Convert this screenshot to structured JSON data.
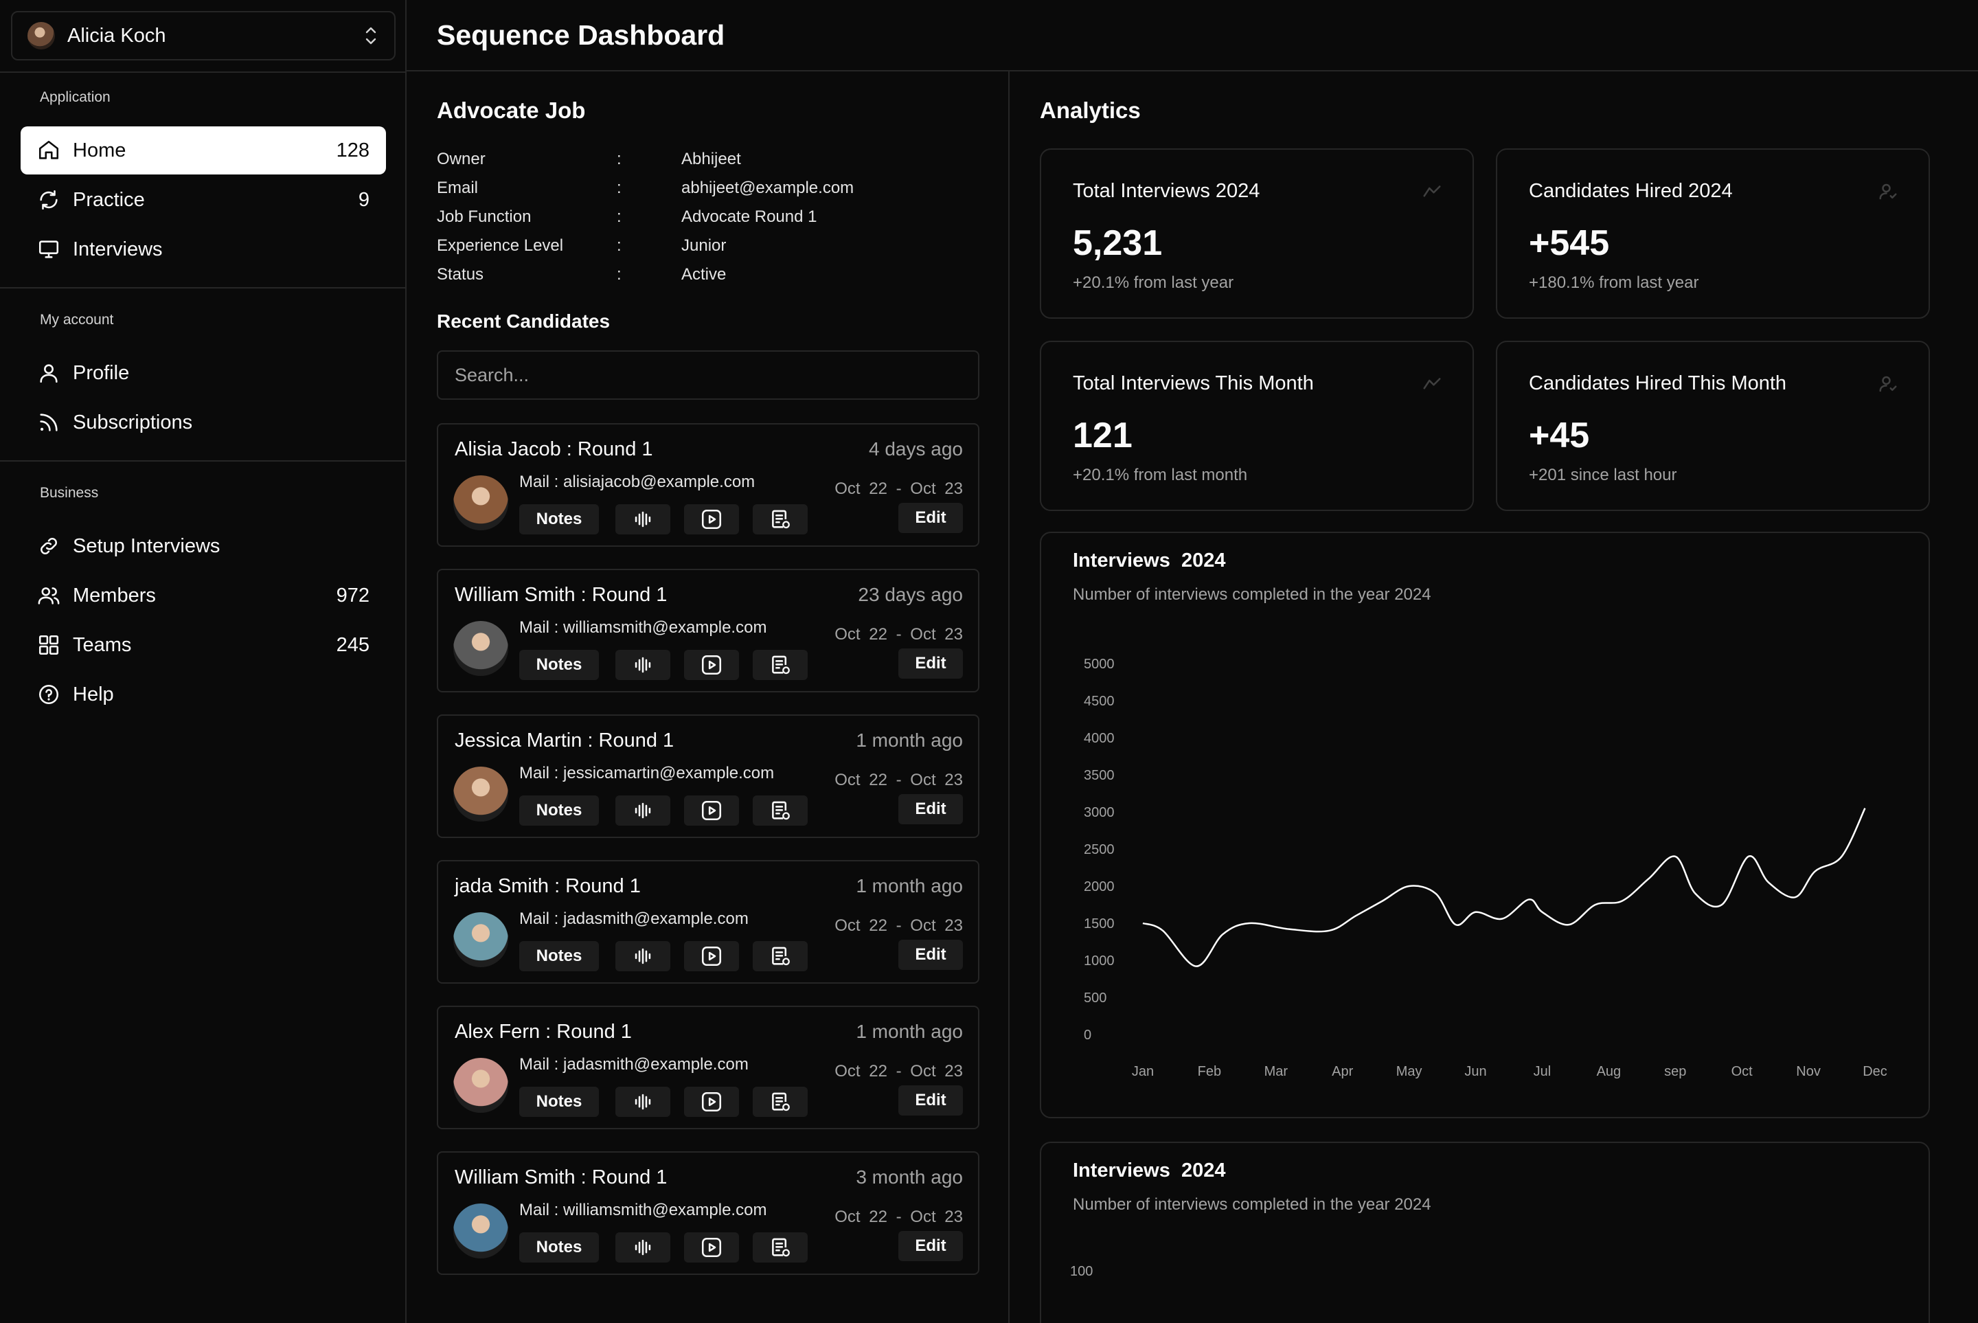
{
  "account": {
    "name": "Alicia Koch"
  },
  "sidebar": {
    "groups": [
      {
        "label": "Application",
        "items": [
          {
            "label": "Home",
            "count": "128",
            "icon": "home-icon",
            "active": true
          },
          {
            "label": "Practice",
            "count": "9",
            "icon": "refresh-icon"
          },
          {
            "label": "Interviews",
            "count": "",
            "icon": "monitor-icon"
          }
        ]
      },
      {
        "label": "My account",
        "items": [
          {
            "label": "Profile",
            "count": "",
            "icon": "user-icon"
          },
          {
            "label": "Subscriptions",
            "count": "",
            "icon": "rss-icon"
          }
        ]
      },
      {
        "label": "Business",
        "items": [
          {
            "label": "Setup Interviews",
            "count": "",
            "icon": "link-icon"
          },
          {
            "label": "Members",
            "count": "972",
            "icon": "users-icon"
          },
          {
            "label": "Teams",
            "count": "245",
            "icon": "grid-icon"
          },
          {
            "label": "Help",
            "count": "",
            "icon": "help-icon"
          }
        ]
      }
    ]
  },
  "header": {
    "title": "Sequence Dashboard"
  },
  "job": {
    "title": "Advocate Job",
    "fields": [
      {
        "label": "Owner",
        "sep": ":",
        "value": "Abhijeet"
      },
      {
        "label": "Email",
        "sep": ":",
        "value": "abhijeet@example.com"
      },
      {
        "label": "Job Function",
        "sep": ":",
        "value": "Advocate Round 1"
      },
      {
        "label": "Experience Level",
        "sep": ":",
        "value": "Junior"
      },
      {
        "label": "Status",
        "sep": ":",
        "value": "Active"
      }
    ]
  },
  "candidates": {
    "title": "Recent Candidates",
    "search_placeholder": "Search...",
    "notes_label": "Notes",
    "edit_label": "Edit",
    "items": [
      {
        "name": "Alisia Jacob  : Round 1",
        "ago": "4 days ago",
        "mail": "Mail : alisiajacob@example.com",
        "dates": "Oct 22 - Oct 23",
        "avatar_color": "#8a5a3a"
      },
      {
        "name": "William Smith : Round 1",
        "ago": "23 days ago",
        "mail": "Mail : williamsmith@example.com",
        "dates": "Oct 22 - Oct 23",
        "avatar_color": "#5a5a5a"
      },
      {
        "name": "Jessica Martin : Round 1",
        "ago": "1 month ago",
        "mail": "Mail : jessicamartin@example.com",
        "dates": "Oct 22 - Oct 23",
        "avatar_color": "#9a6b4d"
      },
      {
        "name": "jada Smith : Round 1",
        "ago": "1 month ago",
        "mail": "Mail : jadasmith@example.com",
        "dates": "Oct 22 - Oct 23",
        "avatar_color": "#6b9aa8"
      },
      {
        "name": "Alex Fern : Round 1",
        "ago": "1 month ago",
        "mail": "Mail : jadasmith@example.com",
        "dates": "Oct 22 - Oct 23",
        "avatar_color": "#c9928a"
      },
      {
        "name": "William Smith : Round 1",
        "ago": "3 month ago",
        "mail": "Mail : williamsmith@example.com",
        "dates": "Oct 22 - Oct 23",
        "avatar_color": "#4a7a9a"
      }
    ]
  },
  "analytics": {
    "title": "Analytics",
    "stats": [
      {
        "title": "Total Interviews 2024",
        "value": "5,231",
        "sub": "+20.1% from last year",
        "icon": "trend-icon"
      },
      {
        "title": "Candidates Hired 2024",
        "value": "+545",
        "sub": "+180.1% from last year",
        "icon": "user-check-icon"
      },
      {
        "title": "Total Interviews This Month",
        "value": "121",
        "sub": "+20.1% from last month",
        "icon": "trend-icon"
      },
      {
        "title": "Candidates Hired This Month",
        "value": "+45",
        "sub": "+201 since last hour",
        "icon": "user-check-icon"
      }
    ],
    "charts": [
      {
        "title": "Interviews  2024",
        "subtitle": "Number of interviews completed in the year 2024"
      },
      {
        "title": "Interviews  2024",
        "subtitle": "Number of interviews completed in the year 2024",
        "first_tick": "100"
      }
    ]
  },
  "chart_data": {
    "type": "line",
    "categories": [
      "Jan",
      "Feb",
      "Mar",
      "Apr",
      "May",
      "Jun",
      "Jul",
      "Aug",
      "sep",
      "Oct",
      "Nov",
      "Dec"
    ],
    "yticks": [
      5000,
      4500,
      4000,
      3500,
      3000,
      2500,
      2000,
      1500,
      1000,
      500,
      0
    ],
    "ylim": [
      0,
      5000
    ],
    "grid": false,
    "x": [
      0,
      0.3,
      0.8,
      1.2,
      1.6,
      2.2,
      2.8,
      3.2,
      3.6,
      4.0,
      4.4,
      4.7,
      5.0,
      5.4,
      5.8,
      6.0,
      6.4,
      6.8,
      7.2,
      7.6,
      8.0,
      8.3,
      8.7,
      9.1,
      9.4,
      9.8,
      10.1,
      10.5,
      10.85
    ],
    "y": [
      1500,
      1400,
      920,
      1350,
      1500,
      1420,
      1400,
      1600,
      1800,
      2000,
      1900,
      1480,
      1650,
      1560,
      1820,
      1650,
      1480,
      1750,
      1800,
      2100,
      2400,
      1900,
      1750,
      2400,
      2050,
      1850,
      2200,
      2400,
      3050
    ],
    "color": "#ffffff"
  }
}
